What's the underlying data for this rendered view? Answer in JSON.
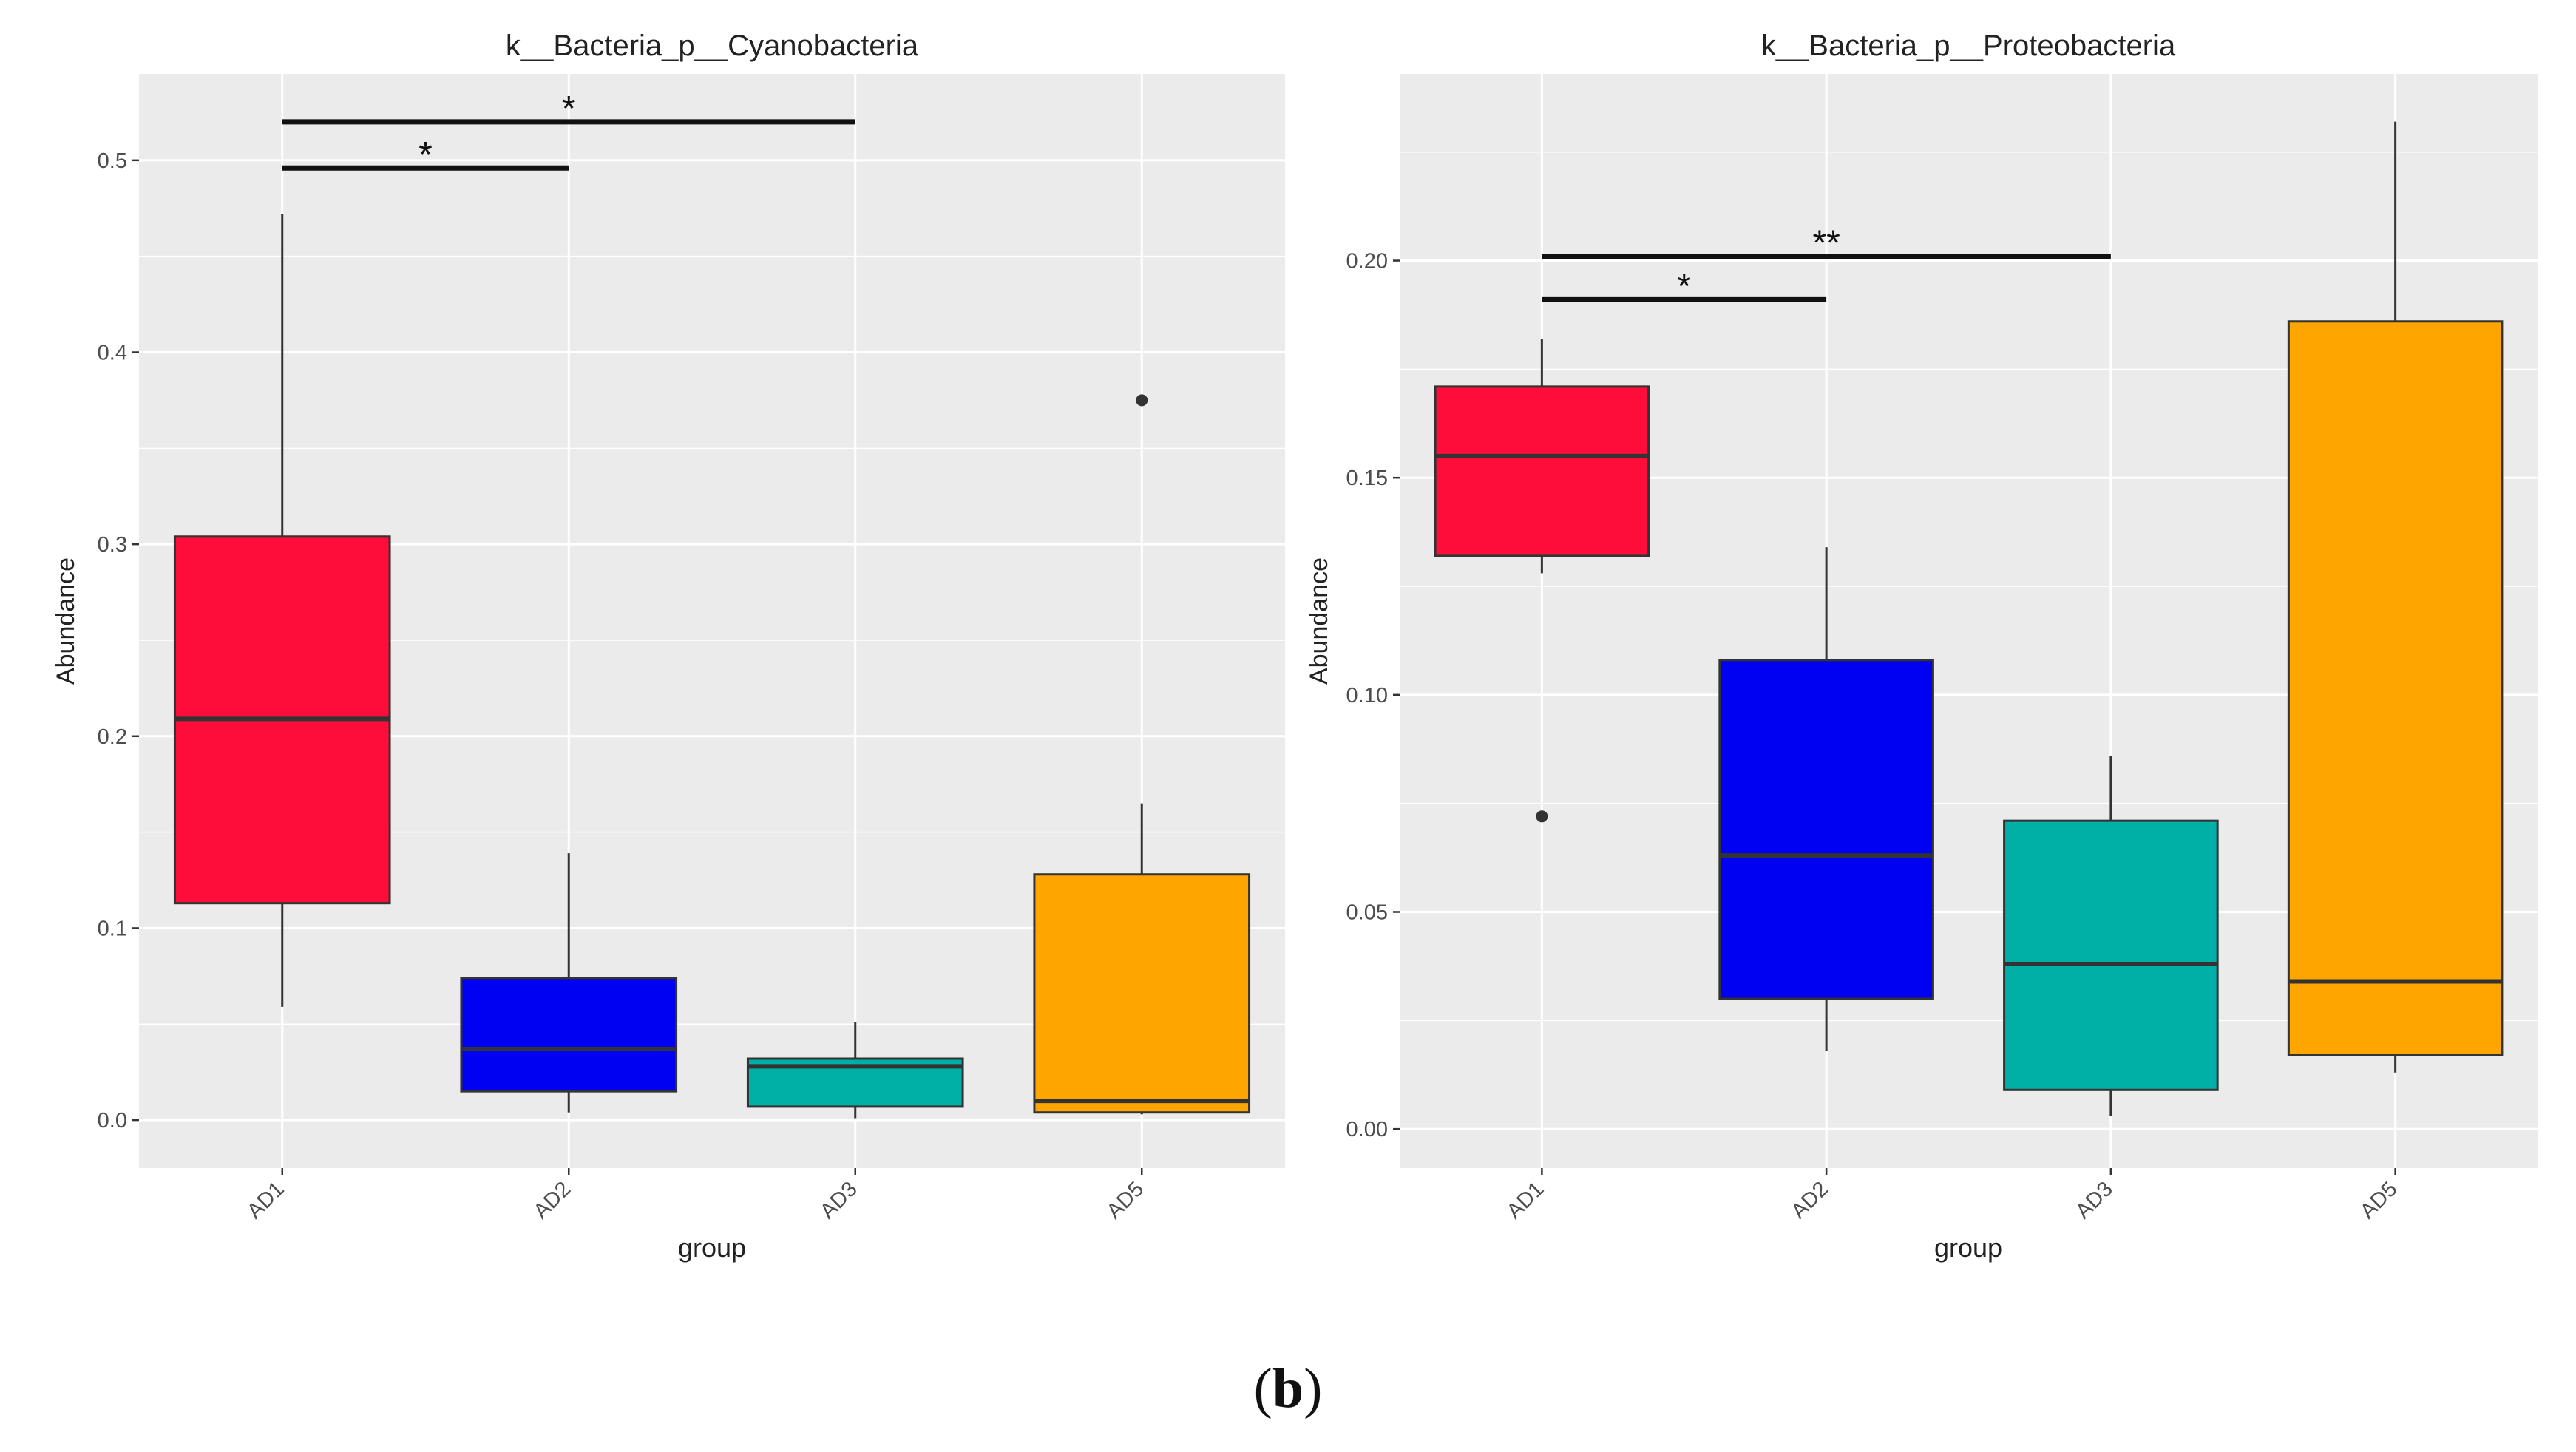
{
  "figure": {
    "label_open": "(",
    "label": "b",
    "label_close": ")"
  },
  "colors": {
    "AD1": "#ff0d3a",
    "AD2": "#0000f2",
    "AD3": "#00afa5",
    "AD5": "#ffa500",
    "panel_bg": "#ebebeb",
    "grid": "#ffffff"
  },
  "chart_data": [
    {
      "type": "box",
      "title": "k__Bacteria_p__Cyanobacteria",
      "xlabel": "group",
      "ylabel": "Abundance",
      "categories": [
        "AD1",
        "AD2",
        "AD3",
        "AD5"
      ],
      "ylim": [
        -0.025,
        0.545
      ],
      "yticks": [
        0.0,
        0.1,
        0.2,
        0.3,
        0.4,
        0.5
      ],
      "ytick_labels": [
        "0.0",
        "0.1",
        "0.2",
        "0.3",
        "0.4",
        "0.5"
      ],
      "boxes": [
        {
          "group": "AD1",
          "whisker_low": 0.059,
          "q1": 0.113,
          "median": 0.209,
          "q3": 0.304,
          "whisker_high": 0.472,
          "outliers": []
        },
        {
          "group": "AD2",
          "whisker_low": 0.004,
          "q1": 0.015,
          "median": 0.037,
          "q3": 0.074,
          "whisker_high": 0.139,
          "outliers": []
        },
        {
          "group": "AD3",
          "whisker_low": 0.001,
          "q1": 0.007,
          "median": 0.028,
          "q3": 0.032,
          "whisker_high": 0.051,
          "outliers": []
        },
        {
          "group": "AD5",
          "whisker_low": 0.003,
          "q1": 0.004,
          "median": 0.01,
          "q3": 0.128,
          "whisker_high": 0.165,
          "outliers": [
            0.375
          ]
        }
      ],
      "significance": [
        {
          "from": "AD1",
          "to": "AD3",
          "y": 0.52,
          "label": "*"
        },
        {
          "from": "AD1",
          "to": "AD2",
          "y": 0.496,
          "label": "*"
        }
      ]
    },
    {
      "type": "box",
      "title": "k__Bacteria_p__Proteobacteria",
      "xlabel": "group",
      "ylabel": "Abundance",
      "categories": [
        "AD1",
        "AD2",
        "AD3",
        "AD5"
      ],
      "ylim": [
        -0.009,
        0.243
      ],
      "yticks": [
        0.0,
        0.05,
        0.1,
        0.15,
        0.2
      ],
      "ytick_labels": [
        "0.00",
        "0.05",
        "0.10",
        "0.15",
        "0.20"
      ],
      "boxes": [
        {
          "group": "AD1",
          "whisker_low": 0.128,
          "q1": 0.132,
          "median": 0.155,
          "q3": 0.171,
          "whisker_high": 0.182,
          "outliers": [
            0.072
          ]
        },
        {
          "group": "AD2",
          "whisker_low": 0.018,
          "q1": 0.03,
          "median": 0.063,
          "q3": 0.108,
          "whisker_high": 0.134,
          "outliers": []
        },
        {
          "group": "AD3",
          "whisker_low": 0.003,
          "q1": 0.009,
          "median": 0.038,
          "q3": 0.071,
          "whisker_high": 0.086,
          "outliers": []
        },
        {
          "group": "AD5",
          "whisker_low": 0.013,
          "q1": 0.017,
          "median": 0.034,
          "q3": 0.186,
          "whisker_high": 0.232,
          "outliers": []
        }
      ],
      "significance": [
        {
          "from": "AD1",
          "to": "AD3",
          "y": 0.201,
          "label": "**"
        },
        {
          "from": "AD1",
          "to": "AD2",
          "y": 0.191,
          "label": "*"
        }
      ]
    }
  ]
}
